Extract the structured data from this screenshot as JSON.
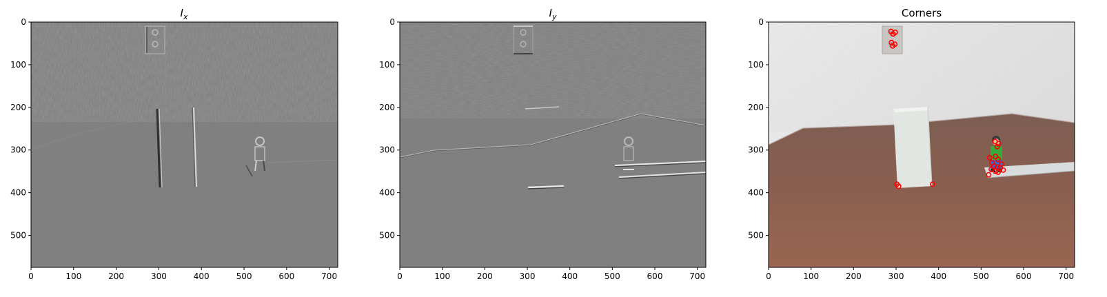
{
  "figure": {
    "panels": [
      {
        "id": "ix",
        "title_main": "I",
        "title_sub": "x",
        "title_text": "",
        "image_kind": "gradient-x"
      },
      {
        "id": "iy",
        "title_main": "I",
        "title_sub": "y",
        "title_text": "",
        "image_kind": "gradient-y"
      },
      {
        "id": "corners",
        "title_main": "",
        "title_sub": "",
        "title_text": "Corners",
        "image_kind": "photo"
      }
    ]
  },
  "chart_data": [
    {
      "type": "image",
      "title": "I_x",
      "xlim": [
        0,
        720
      ],
      "ylim": [
        575,
        0
      ],
      "xticks": [
        0,
        100,
        200,
        300,
        400,
        500,
        600,
        700
      ],
      "yticks": [
        0,
        100,
        200,
        300,
        400,
        500
      ],
      "colormap": "gray"
    },
    {
      "type": "image",
      "title": "I_y",
      "xlim": [
        0,
        720
      ],
      "ylim": [
        575,
        0
      ],
      "xticks": [
        0,
        100,
        200,
        300,
        400,
        500,
        600,
        700
      ],
      "yticks": [
        0,
        100,
        200,
        300,
        400,
        500
      ],
      "colormap": "gray"
    },
    {
      "type": "scatter",
      "title": "Corners",
      "background": "photo",
      "xlim": [
        0,
        720
      ],
      "ylim": [
        575,
        0
      ],
      "xticks": [
        0,
        100,
        200,
        300,
        400,
        500,
        600,
        700
      ],
      "yticks": [
        0,
        100,
        200,
        300,
        400,
        500
      ],
      "marker": "circle",
      "marker_color": "#ff0000",
      "points": [
        {
          "x": 288,
          "y": 22
        },
        {
          "x": 298,
          "y": 24
        },
        {
          "x": 293,
          "y": 28
        },
        {
          "x": 289,
          "y": 48
        },
        {
          "x": 297,
          "y": 52
        },
        {
          "x": 292,
          "y": 56
        },
        {
          "x": 302,
          "y": 380
        },
        {
          "x": 306,
          "y": 385
        },
        {
          "x": 386,
          "y": 380
        },
        {
          "x": 533,
          "y": 280
        },
        {
          "x": 541,
          "y": 285
        },
        {
          "x": 538,
          "y": 292
        },
        {
          "x": 520,
          "y": 318
        },
        {
          "x": 534,
          "y": 315
        },
        {
          "x": 540,
          "y": 322
        },
        {
          "x": 526,
          "y": 330
        },
        {
          "x": 548,
          "y": 333
        },
        {
          "x": 530,
          "y": 338
        },
        {
          "x": 538,
          "y": 340
        },
        {
          "x": 545,
          "y": 342
        },
        {
          "x": 524,
          "y": 345
        },
        {
          "x": 534,
          "y": 350
        },
        {
          "x": 552,
          "y": 347
        },
        {
          "x": 540,
          "y": 352
        },
        {
          "x": 518,
          "y": 358
        }
      ]
    }
  ]
}
